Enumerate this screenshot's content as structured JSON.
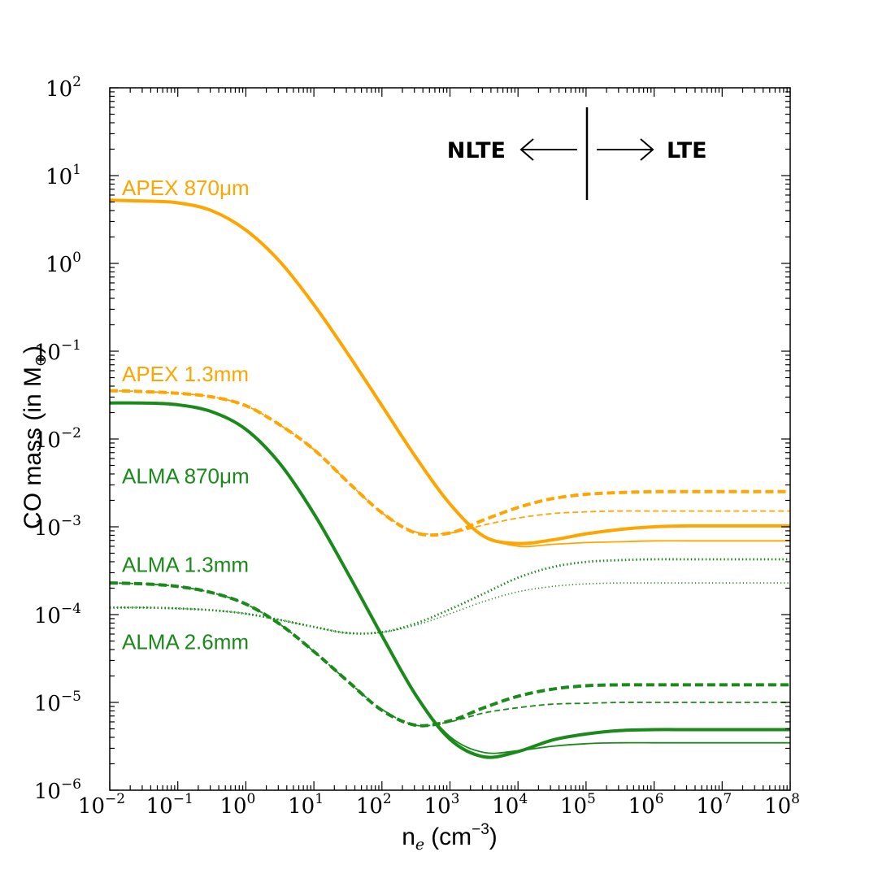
{
  "chart_data": {
    "type": "line",
    "title": "",
    "xlabel": "n",
    "xlabel_subscript": "e",
    "xlabel_unit": "(cm",
    "xlabel_unit_exp": "−3",
    "xlabel_unit_close": ")",
    "ylabel": "CO mass (in M",
    "ylabel_subscript": "⊕",
    "ylabel_close": ")",
    "xscale": "log",
    "yscale": "log",
    "xlim_log10": [
      -2,
      8
    ],
    "ylim_log10": [
      -6,
      2
    ],
    "x_ticks": [
      {
        "base": "10",
        "exp": "−2"
      },
      {
        "base": "10",
        "exp": "−1"
      },
      {
        "base": "10",
        "exp": "0"
      },
      {
        "base": "10",
        "exp": "1"
      },
      {
        "base": "10",
        "exp": "2"
      },
      {
        "base": "10",
        "exp": "3"
      },
      {
        "base": "10",
        "exp": "4"
      },
      {
        "base": "10",
        "exp": "5"
      },
      {
        "base": "10",
        "exp": "6"
      },
      {
        "base": "10",
        "exp": "7"
      },
      {
        "base": "10",
        "exp": "8"
      }
    ],
    "y_ticks": [
      {
        "base": "10",
        "exp": "−6"
      },
      {
        "base": "10",
        "exp": "−5"
      },
      {
        "base": "10",
        "exp": "−4"
      },
      {
        "base": "10",
        "exp": "−3"
      },
      {
        "base": "10",
        "exp": "−2"
      },
      {
        "base": "10",
        "exp": "−1"
      },
      {
        "base": "10",
        "exp": "0"
      },
      {
        "base": "10",
        "exp": "1"
      },
      {
        "base": "10",
        "exp": "2"
      }
    ],
    "x_log10": [
      -2,
      -1.5,
      -1,
      -0.5,
      0,
      0.5,
      1,
      1.5,
      2,
      2.5,
      3,
      3.5,
      4,
      4.5,
      5,
      5.5,
      6,
      6.5,
      7,
      7.5,
      8
    ],
    "annotation": {
      "left": "NLTE",
      "right": "LTE",
      "divider_x_log10": 5
    },
    "series": [
      {
        "name": "APEX 870μm (thick)",
        "color": "#FFA500",
        "style": "solid",
        "weight": "thick",
        "y_log10": [
          0.72,
          0.71,
          0.69,
          0.6,
          0.38,
          0.02,
          -0.47,
          -1.03,
          -1.62,
          -2.21,
          -2.74,
          -3.11,
          -3.19,
          -3.15,
          -3.08,
          -3.03,
          -3.0,
          -2.99,
          -2.99,
          -2.99,
          -2.99
        ]
      },
      {
        "name": "APEX 870μm (thin)",
        "color": "#FFA500",
        "style": "solid",
        "weight": "thin",
        "y_log10": [
          0.72,
          0.71,
          0.69,
          0.6,
          0.38,
          0.02,
          -0.47,
          -1.03,
          -1.62,
          -2.21,
          -2.73,
          -3.1,
          -3.22,
          -3.2,
          -3.18,
          -3.17,
          -3.16,
          -3.16,
          -3.16,
          -3.16,
          -3.16
        ]
      },
      {
        "name": "APEX 1.3mm (thick)",
        "color": "#FFA500",
        "style": "dashed",
        "weight": "thick",
        "y_log10": [
          -1.45,
          -1.46,
          -1.48,
          -1.52,
          -1.62,
          -1.84,
          -2.12,
          -2.49,
          -2.84,
          -3.07,
          -3.07,
          -2.92,
          -2.78,
          -2.68,
          -2.63,
          -2.61,
          -2.6,
          -2.6,
          -2.6,
          -2.6,
          -2.6
        ]
      },
      {
        "name": "APEX 1.3mm (thin)",
        "color": "#FFA500",
        "style": "dashed",
        "weight": "thin",
        "y_log10": [
          -1.45,
          -1.46,
          -1.48,
          -1.52,
          -1.62,
          -1.84,
          -2.12,
          -2.49,
          -2.84,
          -3.06,
          -3.07,
          -2.98,
          -2.9,
          -2.85,
          -2.83,
          -2.82,
          -2.82,
          -2.82,
          -2.82,
          -2.82,
          -2.82
        ]
      },
      {
        "name": "ALMA 870μm (thick)",
        "color": "#1A8A1A",
        "style": "solid",
        "weight": "thick",
        "y_log10": [
          -1.59,
          -1.59,
          -1.61,
          -1.69,
          -1.89,
          -2.28,
          -2.85,
          -3.53,
          -4.24,
          -4.92,
          -5.42,
          -5.62,
          -5.56,
          -5.43,
          -5.36,
          -5.32,
          -5.31,
          -5.31,
          -5.31,
          -5.31,
          -5.31
        ]
      },
      {
        "name": "ALMA 870μm (thin)",
        "color": "#1A8A1A",
        "style": "solid",
        "weight": "thin",
        "y_log10": [
          -1.59,
          -1.59,
          -1.61,
          -1.69,
          -1.89,
          -2.28,
          -2.85,
          -3.53,
          -4.24,
          -4.92,
          -5.39,
          -5.57,
          -5.55,
          -5.5,
          -5.47,
          -5.46,
          -5.46,
          -5.46,
          -5.46,
          -5.46,
          -5.46
        ]
      },
      {
        "name": "ALMA 1.3mm (thick)",
        "color": "#1A8A1A",
        "style": "dashed",
        "weight": "thick",
        "y_log10": [
          -3.64,
          -3.65,
          -3.68,
          -3.75,
          -3.88,
          -4.11,
          -4.42,
          -4.76,
          -5.09,
          -5.26,
          -5.21,
          -5.06,
          -4.93,
          -4.85,
          -4.81,
          -4.8,
          -4.8,
          -4.8,
          -4.8,
          -4.8,
          -4.8
        ]
      },
      {
        "name": "ALMA 1.3mm (thin)",
        "color": "#1A8A1A",
        "style": "dashed",
        "weight": "thin",
        "y_log10": [
          -3.64,
          -3.65,
          -3.68,
          -3.75,
          -3.88,
          -4.11,
          -4.42,
          -4.76,
          -5.08,
          -5.26,
          -5.22,
          -5.12,
          -5.06,
          -5.02,
          -5.01,
          -5.0,
          -5.0,
          -5.0,
          -5.0,
          -5.0,
          -5.0
        ]
      },
      {
        "name": "ALMA 2.6mm (thick)",
        "color": "#1A8A1A",
        "style": "dotted",
        "weight": "thick",
        "y_log10": [
          -3.92,
          -3.92,
          -3.93,
          -3.95,
          -3.99,
          -4.06,
          -4.14,
          -4.21,
          -4.2,
          -4.1,
          -3.94,
          -3.76,
          -3.58,
          -3.46,
          -3.4,
          -3.38,
          -3.37,
          -3.37,
          -3.37,
          -3.37,
          -3.37
        ]
      },
      {
        "name": "ALMA 2.6mm (thin)",
        "color": "#1A8A1A",
        "style": "dotted",
        "weight": "thin",
        "y_log10": [
          -3.92,
          -3.92,
          -3.93,
          -3.95,
          -3.99,
          -4.06,
          -4.14,
          -4.21,
          -4.2,
          -4.12,
          -3.99,
          -3.85,
          -3.74,
          -3.68,
          -3.65,
          -3.64,
          -3.64,
          -3.64,
          -3.64,
          -3.64,
          -3.64
        ]
      }
    ],
    "series_labels": [
      {
        "text": "APEX 870μm",
        "color": "#FFA500",
        "y_log10": 0.86
      },
      {
        "text": "APEX 1.3mm",
        "color": "#FFA500",
        "y_log10": -1.26
      },
      {
        "text": "ALMA 870μm",
        "color": "#1A8A1A",
        "y_log10": -2.42
      },
      {
        "text": "ALMA 1.3mm",
        "color": "#1A8A1A",
        "y_log10": -3.43
      },
      {
        "text": "ALMA 2.6mm",
        "color": "#1A8A1A",
        "y_log10": -4.31
      }
    ]
  }
}
